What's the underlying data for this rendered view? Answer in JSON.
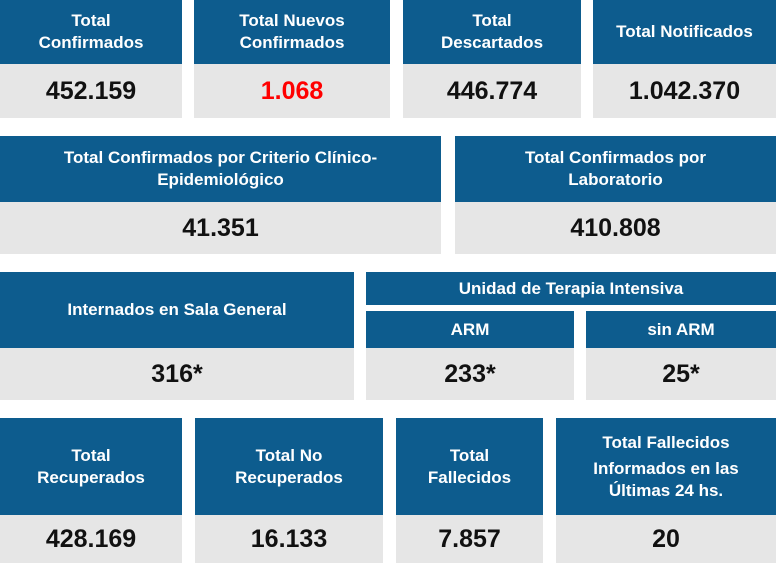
{
  "row1": {
    "total_confirmados": {
      "line1": "Total",
      "line2": "Confirmados",
      "value": "452.159"
    },
    "total_nuevos": {
      "line1": "Total Nuevos",
      "line2": "Confirmados",
      "value": "1.068",
      "value_color": "#ff0000"
    },
    "total_descartados": {
      "line1": "Total",
      "line2": "Descartados",
      "value": "446.774"
    },
    "total_notificados": {
      "line1": "Total Notificados",
      "value": "1.042.370"
    }
  },
  "row2": {
    "criterio_clinico": {
      "line1": "Total Confirmados por Criterio Clínico-",
      "line2": "Epidemiológico",
      "value": "41.351"
    },
    "laboratorio": {
      "line1": "Total Confirmados por",
      "line2": "Laboratorio",
      "value": "410.808"
    }
  },
  "row3": {
    "sala_general": {
      "label": "Internados en Sala General",
      "value": "316*"
    },
    "uti": {
      "title": "Unidad de Terapia Intensiva",
      "arm": {
        "label": "ARM",
        "value": "233*"
      },
      "sin_arm": {
        "label": "sin ARM",
        "value": "25*"
      }
    }
  },
  "row4": {
    "recuperados": {
      "line1": "Total",
      "line2": "Recuperados",
      "value": "428.169"
    },
    "no_recuperados": {
      "line1": "Total No",
      "line2": "Recuperados",
      "value": "16.133"
    },
    "fallecidos": {
      "line1": "Total",
      "line2": "Fallecidos",
      "value": "7.857"
    },
    "fallecidos_24": {
      "line1": "Total Fallecidos",
      "line2": "Informados en las",
      "line3": "Últimas 24 hs.",
      "value": "20"
    }
  },
  "colors": {
    "header_bg": "#0d5c8e",
    "value_bg": "#e6e6e6",
    "highlight": "#ff0000"
  }
}
